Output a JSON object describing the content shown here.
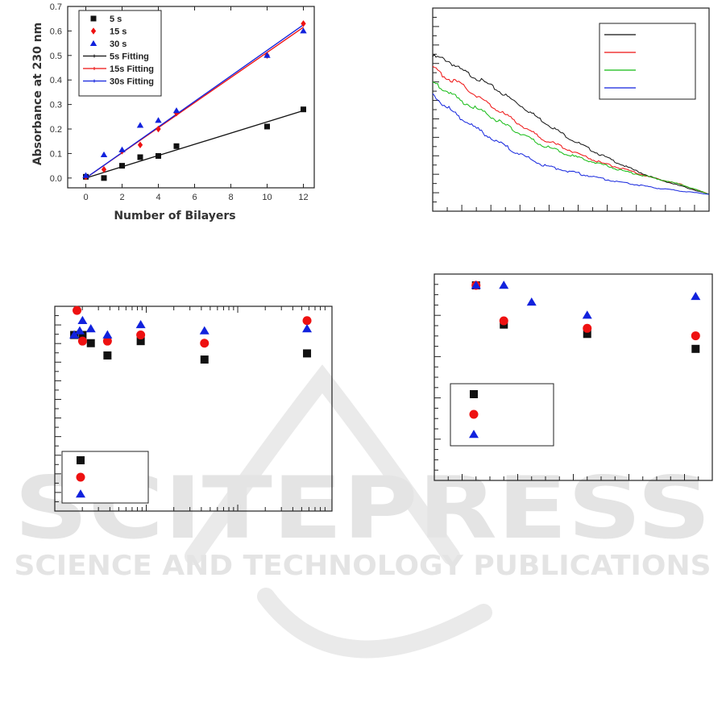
{
  "watermark": {
    "title": "SCITEPRESS",
    "subtitle": "SCIENCE AND TECHNOLOGY PUBLICATIONS",
    "color": "#e4e4e4"
  },
  "colors": {
    "black": "#111111",
    "red": "#ee1111",
    "green": "#11bb11",
    "blue": "#1122dd"
  },
  "chart_data": [
    {
      "type": "scatter",
      "title": "",
      "xlabel": "Number of Bilayers",
      "ylabel": "Absorbance at 230 nm",
      "xlim": [
        -1,
        12.6
      ],
      "ylim": [
        -0.04,
        0.7
      ],
      "x_ticks": [
        0,
        2,
        4,
        6,
        8,
        10,
        12
      ],
      "y_ticks": [
        0.0,
        0.1,
        0.2,
        0.3,
        0.4,
        0.5,
        0.6,
        0.7
      ],
      "y_tick_labels": [
        "0.0",
        "0.1",
        "0.2",
        "0.3",
        "0.4",
        "0.5",
        "0.6",
        "0.7"
      ],
      "grid": false,
      "legend_position": "top-left",
      "series": [
        {
          "name": "5 s",
          "marker": "square",
          "color": "#111111",
          "x": [
            0,
            1,
            2,
            3,
            4,
            5,
            10,
            12
          ],
          "y": [
            0.005,
            0.0,
            0.05,
            0.085,
            0.09,
            0.13,
            0.21,
            0.28
          ]
        },
        {
          "name": "15 s",
          "marker": "diamond",
          "color": "#ee1111",
          "x": [
            0,
            1,
            2,
            3,
            4,
            5,
            10,
            12
          ],
          "y": [
            0.005,
            0.035,
            0.11,
            0.135,
            0.2,
            0.265,
            0.5,
            0.63
          ]
        },
        {
          "name": "30 s",
          "marker": "triangle",
          "color": "#1122dd",
          "x": [
            0,
            1,
            2,
            3,
            4,
            5,
            10,
            12
          ],
          "y": [
            0.01,
            0.095,
            0.115,
            0.215,
            0.235,
            0.275,
            0.5,
            0.6
          ]
        }
      ],
      "fits": [
        {
          "name": "5s Fitting",
          "color": "#111111",
          "x": [
            0,
            12
          ],
          "y": [
            0.0,
            0.275
          ]
        },
        {
          "name": "15s Fitting",
          "color": "#ee1111",
          "x": [
            0,
            12
          ],
          "y": [
            0.0,
            0.615
          ]
        },
        {
          "name": "30s Fitting",
          "color": "#1122dd",
          "x": [
            0,
            12
          ],
          "y": [
            0.0,
            0.625
          ]
        }
      ]
    },
    {
      "type": "line",
      "title": "",
      "xlabel": "",
      "ylabel": "",
      "xlim": [
        0,
        100
      ],
      "ylim": [
        0,
        100
      ],
      "grid": false,
      "legend_position": "top-right",
      "series": [
        {
          "color": "#111111",
          "x": [
            0,
            5,
            10,
            20,
            30,
            40,
            50,
            60,
            70,
            80,
            90,
            100
          ],
          "y": [
            85,
            83,
            77,
            68,
            57,
            45,
            34,
            25,
            17,
            10,
            5,
            0
          ]
        },
        {
          "color": "#ee1111",
          "x": [
            0,
            5,
            10,
            20,
            30,
            40,
            50,
            60,
            70,
            80,
            90,
            100
          ],
          "y": [
            78,
            72,
            68,
            56,
            45,
            34,
            27,
            20,
            15,
            10,
            6,
            0
          ]
        },
        {
          "color": "#11bb11",
          "x": [
            0,
            5,
            10,
            20,
            30,
            40,
            50,
            60,
            70,
            80,
            90,
            100
          ],
          "y": [
            69,
            64,
            58,
            49,
            39,
            30,
            24,
            19,
            14,
            10,
            6,
            0
          ]
        },
        {
          "color": "#1122dd",
          "x": [
            0,
            5,
            10,
            20,
            30,
            40,
            50,
            60,
            70,
            80,
            90,
            100
          ],
          "y": [
            61,
            54,
            47,
            36,
            26,
            18,
            14,
            10,
            7,
            4,
            2,
            0
          ]
        }
      ]
    },
    {
      "type": "scatter",
      "title": "",
      "xlabel": "",
      "ylabel": "",
      "xlim": [
        0,
        100
      ],
      "ylim": [
        0,
        100
      ],
      "grid": false,
      "legend_position": "bottom-left",
      "series": [
        {
          "marker": "square",
          "color": "#111111",
          "x": [
            7,
            10,
            13,
            19,
            31,
            54,
            91
          ],
          "y": [
            86,
            86,
            82,
            76,
            83,
            74,
            77
          ]
        },
        {
          "marker": "circle",
          "color": "#ee1111",
          "x": [
            8,
            10,
            19,
            31,
            54,
            91
          ],
          "y": [
            98,
            83,
            83,
            86,
            82,
            93
          ]
        },
        {
          "marker": "triangle",
          "color": "#1122dd",
          "x": [
            7,
            9,
            10,
            13,
            19,
            31,
            54,
            91
          ],
          "y": [
            86,
            88,
            93,
            89,
            86,
            91,
            88,
            89
          ]
        }
      ]
    },
    {
      "type": "scatter",
      "title": "",
      "xlabel": "",
      "ylabel": "",
      "xlim": [
        0,
        100
      ],
      "ylim": [
        0,
        100
      ],
      "grid": false,
      "legend_position": "bottom-left",
      "series": [
        {
          "marker": "square",
          "color": "#111111",
          "x": [
            15,
            25,
            55,
            94
          ],
          "y": [
            100,
            79,
            74,
            66
          ]
        },
        {
          "marker": "circle",
          "color": "#ee1111",
          "x": [
            15,
            25,
            55,
            94
          ],
          "y": [
            100,
            81,
            77,
            73
          ]
        },
        {
          "marker": "triangle",
          "color": "#1122dd",
          "x": [
            15,
            25,
            35,
            55,
            94
          ],
          "y": [
            100,
            100,
            91,
            84,
            94
          ]
        }
      ]
    }
  ]
}
